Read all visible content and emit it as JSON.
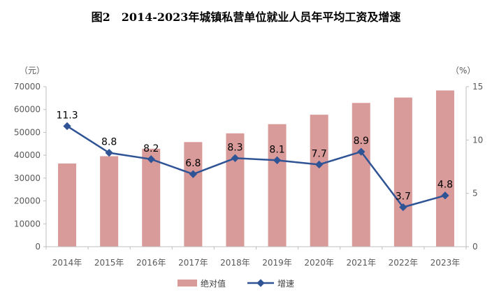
{
  "chart_data": {
    "type": "bar+line",
    "title": "图2　2014-2023年城镇私营单位就业人员年平均工资及增速",
    "categories": [
      "2014年",
      "2015年",
      "2016年",
      "2017年",
      "2018年",
      "2019年",
      "2020年",
      "2021年",
      "2022年",
      "2023年"
    ],
    "series": [
      {
        "name": "绝对值",
        "type": "bar",
        "axis": "left",
        "color": "#d99a9a",
        "values": [
          36390,
          39589,
          42833,
          45761,
          49575,
          53604,
          57727,
          62884,
          65237,
          68340
        ]
      },
      {
        "name": "增速",
        "type": "line",
        "axis": "right",
        "color": "#2f5496",
        "values": [
          11.3,
          8.8,
          8.2,
          6.8,
          8.3,
          8.1,
          7.7,
          8.9,
          3.7,
          4.8
        ],
        "labels": [
          "11.3",
          "8.8",
          "8.2",
          "6.8",
          "8.3",
          "8.1",
          "7.7",
          "8.9",
          "3.7",
          "4.8"
        ]
      }
    ],
    "left_axis": {
      "unit": "（元）",
      "ylim": [
        0,
        70000
      ],
      "ticks": [
        "0",
        "10000",
        "20000",
        "30000",
        "40000",
        "50000",
        "60000",
        "70000"
      ]
    },
    "right_axis": {
      "unit": "（%）",
      "ylim": [
        0,
        15
      ],
      "ticks": [
        "0",
        "5",
        "10",
        "15"
      ]
    },
    "legend": {
      "position": "bottom",
      "bar_label": "绝对值",
      "line_label": "增速"
    }
  }
}
